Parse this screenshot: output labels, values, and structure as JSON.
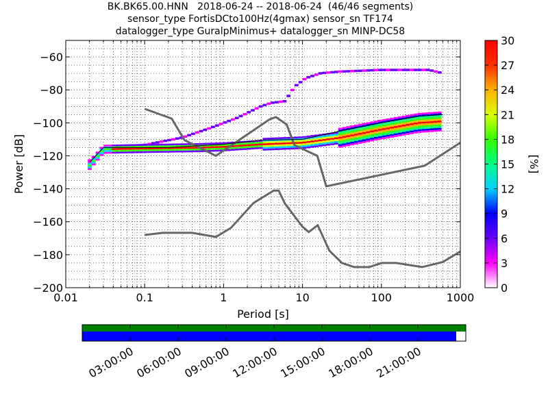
{
  "title_lines": [
    "BK.BK65.00.HNN   2018-06-24 -- 2018-06-24  (46/46 segments)",
    "sensor_type FortisDCto100Hz(4gmax) sensor_sn TF174",
    "datalogger_type GuralpMinimus+ datalogger_sn MINP-DC58"
  ],
  "chart_data": {
    "type": "heatmap",
    "xlabel": "Period [s]",
    "ylabel": "Power [dB]",
    "xscale": "log",
    "xlim": [
      0.01,
      1000
    ],
    "ylim": [
      -200,
      -50
    ],
    "xticks": [
      0.01,
      0.1,
      1,
      10,
      100,
      1000
    ],
    "xtick_labels": [
      "0.01",
      "0.1",
      "1",
      "10",
      "100",
      "1000"
    ],
    "yticks": [
      -200,
      -180,
      -160,
      -140,
      -120,
      -100,
      -80,
      -60
    ],
    "ytick_labels": [
      "−200",
      "−180",
      "−160",
      "−140",
      "−120",
      "−100",
      "−80",
      "−60"
    ],
    "grid": "dotted",
    "colorbar": {
      "label": "[%]",
      "range": [
        0,
        30
      ],
      "ticks": [
        0,
        3,
        6,
        9,
        12,
        15,
        18,
        21,
        24,
        27,
        30
      ],
      "tick_labels": [
        "0",
        "3",
        "6",
        "9",
        "12",
        "15",
        "18",
        "21",
        "24",
        "27",
        "30"
      ],
      "stops": [
        "#ffffff",
        "#ff00ff",
        "#6a00ff",
        "#0000ff",
        "#00d0ff",
        "#00ff88",
        "#33ff00",
        "#d8ff00",
        "#ffb000",
        "#ff3000",
        "#ff0000"
      ]
    },
    "noise_models": {
      "high_noise_model": [
        [
          0.1,
          -91.5
        ],
        [
          0.22,
          -97.4
        ],
        [
          0.32,
          -110.5
        ],
        [
          0.8,
          -120
        ],
        [
          3.8,
          -98
        ],
        [
          4.6,
          -96.5
        ],
        [
          6.3,
          -101
        ],
        [
          7.9,
          -113.5
        ],
        [
          15.4,
          -120
        ],
        [
          20,
          -138.5
        ],
        [
          354.8,
          -126
        ],
        [
          1000,
          -112
        ]
      ],
      "low_noise_model": [
        [
          0.1,
          -168
        ],
        [
          0.17,
          -166.7
        ],
        [
          0.4,
          -166.7
        ],
        [
          0.8,
          -169.2
        ],
        [
          1.24,
          -163.7
        ],
        [
          2.4,
          -148.6
        ],
        [
          4.3,
          -141.1
        ],
        [
          5,
          -141.1
        ],
        [
          6,
          -149
        ],
        [
          10,
          -163
        ],
        [
          12,
          -166.2
        ],
        [
          15.6,
          -162.1
        ],
        [
          21.9,
          -177.5
        ],
        [
          31.6,
          -185
        ],
        [
          45,
          -187.5
        ],
        [
          70,
          -187.5
        ],
        [
          101,
          -185
        ],
        [
          154,
          -185
        ],
        [
          328,
          -187.5
        ],
        [
          600,
          -184.4
        ],
        [
          1000,
          -178
        ]
      ]
    },
    "psd_branches": [
      {
        "name": "upper",
        "points": [
          [
            0.02,
            -123
          ],
          [
            0.03,
            -116
          ],
          [
            0.1,
            -113.5
          ],
          [
            0.3,
            -109
          ],
          [
            0.7,
            -103
          ],
          [
            1.5,
            -97
          ],
          [
            3,
            -90
          ],
          [
            4,
            -88
          ],
          [
            6,
            -87
          ],
          [
            8,
            -78
          ],
          [
            11,
            -73
          ],
          [
            17,
            -70
          ],
          [
            30,
            -69
          ],
          [
            100,
            -68
          ],
          [
            400,
            -68
          ],
          [
            600,
            -70
          ]
        ]
      },
      {
        "name": "main",
        "points": [
          [
            0.02,
            -126
          ],
          [
            0.03,
            -116
          ],
          [
            0.1,
            -115.5
          ],
          [
            0.5,
            -115
          ],
          [
            1,
            -114.5
          ],
          [
            3,
            -113
          ],
          [
            10,
            -112
          ],
          [
            30,
            -109
          ],
          [
            100,
            -104
          ],
          [
            300,
            -100
          ],
          [
            600,
            -99
          ]
        ]
      }
    ],
    "mean_line": [
      [
        0.02,
        -124
      ],
      [
        0.03,
        -115
      ],
      [
        0.2,
        -115
      ],
      [
        1,
        -113
      ],
      [
        3,
        -110.5
      ],
      [
        10,
        -110
      ],
      [
        30,
        -105
      ],
      [
        100,
        -100
      ],
      [
        300,
        -96
      ],
      [
        600,
        -95
      ]
    ]
  },
  "timeline": {
    "tick_labels": [
      "03:00:00",
      "06:00:00",
      "09:00:00",
      "12:00:00",
      "15:00:00",
      "18:00:00",
      "21:00:00"
    ],
    "hours": [
      3,
      6,
      9,
      12,
      15,
      18,
      21
    ],
    "span_hours": 24,
    "coverage_fraction": 0.975,
    "data_color": "#008000",
    "psd_color": "#0000ff"
  }
}
